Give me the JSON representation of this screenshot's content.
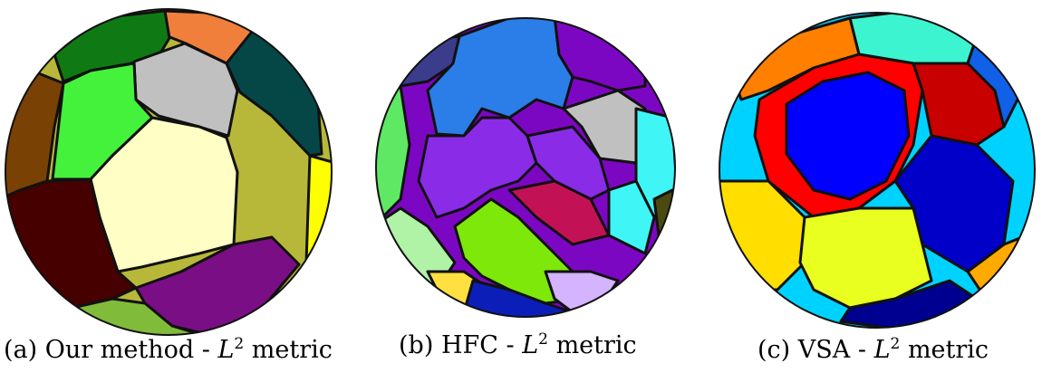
{
  "figure": {
    "panels": [
      {
        "label": "(a)",
        "method": "Our method",
        "metric_sep": " - ",
        "metric_symbol": "L",
        "metric_power": "2",
        "metric_word": "metric"
      },
      {
        "label": "(b)",
        "method": "HFC",
        "metric_sep": " - ",
        "metric_symbol": "L",
        "metric_power": "2",
        "metric_word": "metric"
      },
      {
        "label": "(c)",
        "method": "VSA",
        "metric_sep": " - ",
        "metric_symbol": "L",
        "metric_power": "2",
        "metric_word": "metric"
      }
    ]
  },
  "colors": {
    "a": [
      "#f07f3c",
      "#0f7a14",
      "#c0c0c0",
      "#054747",
      "#7a4104",
      "#44f23c",
      "#fffec4",
      "#b7b83a",
      "#ffff00",
      "#460000",
      "#7a0e85",
      "#80bb3a",
      "#ddaaff"
    ],
    "b": [
      "#3c3c8c",
      "#2b7de8",
      "#7c07c2",
      "#8a2be8",
      "#c0c0c0",
      "#40f5f5",
      "#c21255",
      "#7de80a",
      "#5ee864",
      "#b0f2a6",
      "#ffe040",
      "#0b1fb8",
      "#d4b3ff",
      "#4a4a10"
    ],
    "c": [
      "#3cf5d0",
      "#ff7f00",
      "#ff0000",
      "#0000ff",
      "#c80000",
      "#00d2ff",
      "#1060e8",
      "#0000c8",
      "#ffde00",
      "#e8ff1f",
      "#000090",
      "#ffaa00"
    ]
  }
}
